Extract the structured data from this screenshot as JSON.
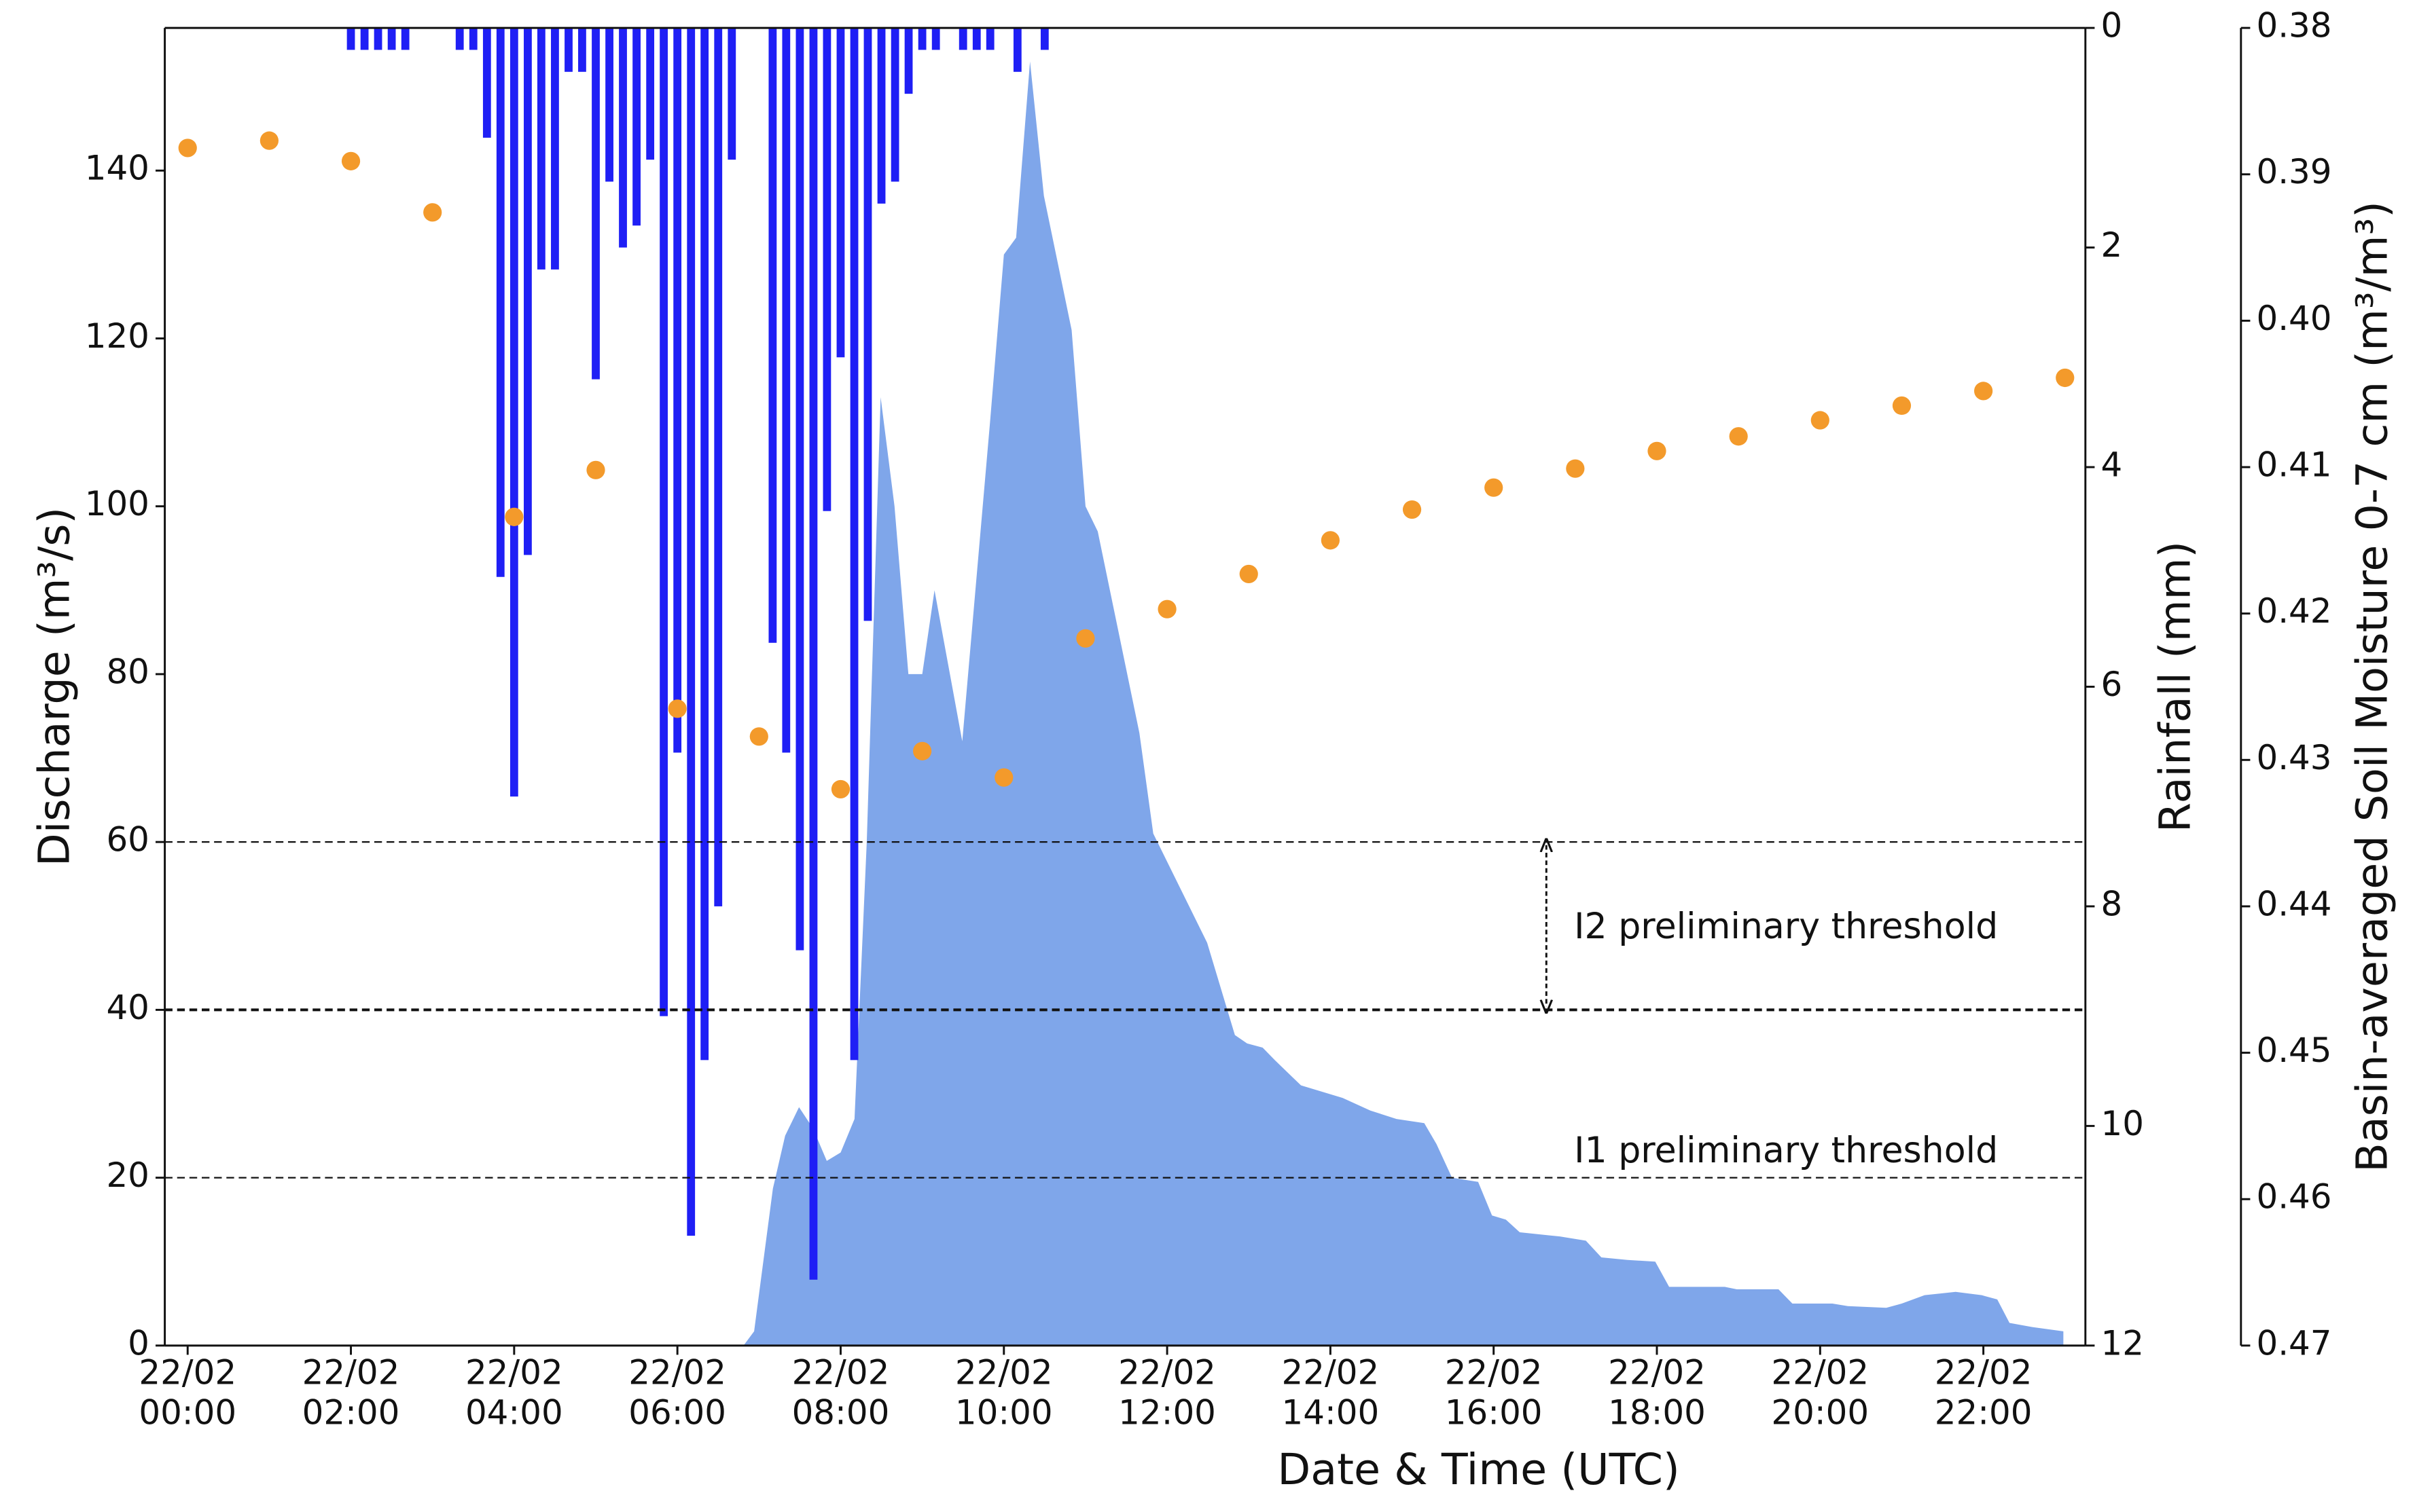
{
  "chart_data": {
    "type": "combo",
    "xlabel": "Date & Time (UTC)",
    "ylabel": "Discharge (m³/s)",
    "y2label": "Rainfall (mm)",
    "y3label": "Basin-averaged Soil Moisture 0-7 cm (m³/m³)",
    "xlim": [
      -0.28,
      23.25
    ],
    "xticks": [
      {
        "value": 0,
        "label": "22/02 00:00"
      },
      {
        "value": 2,
        "label": "22/02 02:00"
      },
      {
        "value": 4,
        "label": "22/02 04:00"
      },
      {
        "value": 6,
        "label": "22/02 06:00"
      },
      {
        "value": 8,
        "label": "22/02 08:00"
      },
      {
        "value": 10,
        "label": "22/02 10:00"
      },
      {
        "value": 12,
        "label": "22/02 12:00"
      },
      {
        "value": 14,
        "label": "22/02 14:00"
      },
      {
        "value": 16,
        "label": "22/02 16:00"
      },
      {
        "value": 18,
        "label": "22/02 18:00"
      },
      {
        "value": 20,
        "label": "22/02 20:00"
      },
      {
        "value": 22,
        "label": "22/02 22:00"
      }
    ],
    "ylim": [
      0,
      157
    ],
    "yticks": [
      0,
      20,
      40,
      60,
      80,
      100,
      120,
      140
    ],
    "y2lim": [
      0,
      12
    ],
    "y2ticks": [
      0,
      2,
      4,
      6,
      8,
      10,
      12
    ],
    "y2_inverted": true,
    "y3lim": [
      0.38,
      0.47
    ],
    "y3ticks": [
      0.38,
      0.39,
      {
        "value": 0.4,
        "label": "0.40"
      },
      0.41,
      0.42,
      0.43,
      0.44,
      0.45,
      0.46,
      0.47
    ],
    "y3_inverted": true,
    "thresholds": [
      20,
      40,
      60
    ],
    "annotations": [
      "I2 preliminary threshold",
      "I1 preliminary threshold"
    ],
    "series": [
      {
        "type": "area",
        "color": "#7fa6ea",
        "axis": "y",
        "x": [
          0,
          6.81,
          6.94,
          7.17,
          7.32,
          7.49,
          7.66,
          7.83,
          8.0,
          8.17,
          8.32,
          8.49,
          8.66,
          8.83,
          9.0,
          9.15,
          9.49,
          9.83,
          10.0,
          10.15,
          10.32,
          10.49,
          10.83,
          11.0,
          11.15,
          11.66,
          11.83,
          12.49,
          12.83,
          12.98,
          13.17,
          13.32,
          13.64,
          14.15,
          14.49,
          14.81,
          15.15,
          15.3,
          15.49,
          15.81,
          15.98,
          16.15,
          16.32,
          16.81,
          17.13,
          17.32,
          17.64,
          17.98,
          18.15,
          18.83,
          18.98,
          19.49,
          19.66,
          20.15,
          20.34,
          20.81,
          21.0,
          21.28,
          21.66,
          21.98,
          22.17,
          22.32,
          22.6,
          22.98
        ],
        "values": [
          0,
          0,
          1.7,
          18.7,
          25,
          28.4,
          25.9,
          22,
          23,
          27,
          60,
          113,
          100,
          80,
          80,
          90,
          72,
          110,
          130,
          132,
          153,
          137,
          121,
          100,
          97,
          73,
          61,
          48,
          37,
          36,
          35.5,
          34,
          31,
          29.5,
          28,
          27,
          26.5,
          24,
          20,
          19.5,
          15.5,
          15,
          13.5,
          13,
          12.5,
          10.5,
          10.2,
          10,
          7,
          7,
          6.7,
          6.7,
          5,
          5,
          4.7,
          4.5,
          5,
          6,
          6.4,
          6,
          5.5,
          2.7,
          2.2,
          1.7
        ]
      },
      {
        "type": "bar",
        "color": "#1f1ff5",
        "axis": "y2",
        "x": [
          2.0,
          2.167,
          2.333,
          2.5,
          2.667,
          3.333,
          3.5,
          3.667,
          3.833,
          4.0,
          4.167,
          4.333,
          4.5,
          4.667,
          4.833,
          5.0,
          5.167,
          5.333,
          5.5,
          5.667,
          5.833,
          6.0,
          6.167,
          6.333,
          6.5,
          6.667,
          7.167,
          7.333,
          7.5,
          7.667,
          7.833,
          8.0,
          8.167,
          8.333,
          8.5,
          8.667,
          8.833,
          9.0,
          9.167,
          9.5,
          9.667,
          9.833,
          10.167,
          10.5
        ],
        "values": [
          0.2,
          0.2,
          0.2,
          0.2,
          0.2,
          0.2,
          0.2,
          1.0,
          5.0,
          7.0,
          4.8,
          2.2,
          2.2,
          0.4,
          0.4,
          3.2,
          1.4,
          2.0,
          1.8,
          1.2,
          9.0,
          6.6,
          11.0,
          9.4,
          8.0,
          1.2,
          5.6,
          6.6,
          8.4,
          11.4,
          4.4,
          3.0,
          9.4,
          5.4,
          1.6,
          1.4,
          0.6,
          0.2,
          0.2,
          0.2,
          0.2,
          0.2,
          0.4,
          0.2
        ]
      },
      {
        "type": "scatter",
        "color": "#f39a2b",
        "axis": "y3",
        "x": [
          0,
          1,
          2,
          3,
          4,
          5,
          6,
          7,
          8,
          9,
          10,
          11,
          12,
          13,
          14,
          15,
          16,
          17,
          18,
          19,
          20,
          21,
          22,
          23
        ],
        "values": [
          0.3882,
          0.3877,
          0.3891,
          0.3926,
          0.4134,
          0.4102,
          0.4265,
          0.4284,
          0.432,
          0.4294,
          0.4312,
          0.4217,
          0.4197,
          0.4173,
          0.415,
          0.4129,
          0.4114,
          0.4101,
          0.4089,
          0.4079,
          0.4068,
          0.4058,
          0.4048,
          0.4039
        ]
      }
    ]
  }
}
